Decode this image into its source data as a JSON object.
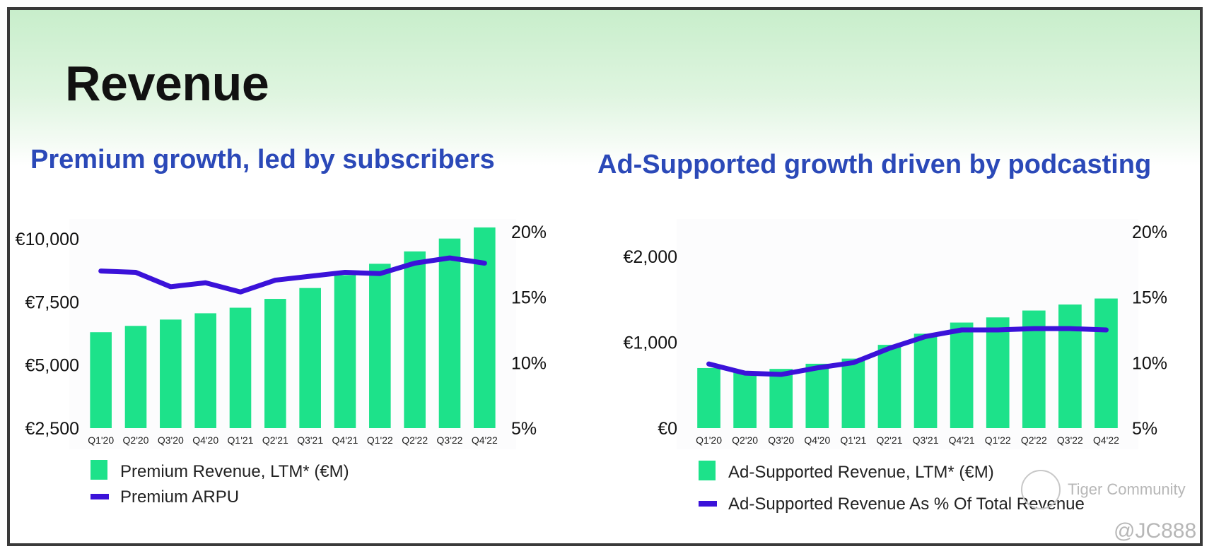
{
  "page": {
    "title": "Revenue"
  },
  "colors": {
    "bar": "#1de28a",
    "line": "#3b12d9",
    "subtitle": "#2b49b8"
  },
  "chart_data": [
    {
      "type": "bar",
      "title": "Premium growth, led by subscribers",
      "categories": [
        "Q1'20",
        "Q2'20",
        "Q3'20",
        "Q4'20",
        "Q1'21",
        "Q2'21",
        "Q3'21",
        "Q4'21",
        "Q1'22",
        "Q2'22",
        "Q3'22",
        "Q4'22"
      ],
      "series": [
        {
          "name": "Premium Revenue, LTM* (€M)",
          "kind": "bar",
          "axis": "left",
          "values": [
            6300,
            6550,
            6800,
            7050,
            7270,
            7620,
            8050,
            8560,
            9010,
            9500,
            10010,
            10450
          ]
        },
        {
          "name": "Premium ARPU",
          "kind": "line",
          "axis": "right",
          "values": [
            17.0,
            16.9,
            15.8,
            16.1,
            15.4,
            16.3,
            16.6,
            16.9,
            16.8,
            17.6,
            18.0,
            17.6
          ]
        }
      ],
      "y_left": {
        "min": 2500,
        "max": 10000,
        "ticks": [
          "€10,000",
          "€7,500",
          "€5,000",
          "€2,500"
        ],
        "tick_values": [
          10000,
          7500,
          5000,
          2500
        ]
      },
      "y_right": {
        "min": 5,
        "max": 20,
        "ticks": [
          "20%",
          "15%",
          "10%",
          "5%"
        ],
        "tick_values": [
          20,
          15,
          10,
          5
        ]
      },
      "legend": [
        "Premium Revenue, LTM* (€M)",
        "Premium ARPU"
      ],
      "legend_position": "bottom"
    },
    {
      "type": "bar",
      "title": "Ad-Supported growth driven by podcasting",
      "categories": [
        "Q1'20",
        "Q2'20",
        "Q3'20",
        "Q4'20",
        "Q1'21",
        "Q2'21",
        "Q3'21",
        "Q4'21",
        "Q1'22",
        "Q2'22",
        "Q3'22",
        "Q4'22"
      ],
      "series": [
        {
          "name": "Ad-Supported Revenue, LTM* (€M)",
          "kind": "bar",
          "axis": "left",
          "values": [
            700,
            660,
            690,
            750,
            810,
            970,
            1100,
            1230,
            1290,
            1370,
            1440,
            1510
          ]
        },
        {
          "name": "Ad-Supported Revenue As % Of Total Revenue",
          "kind": "line",
          "axis": "right",
          "values": [
            9.9,
            9.2,
            9.1,
            9.6,
            10.0,
            11.1,
            12.0,
            12.5,
            12.5,
            12.6,
            12.6,
            12.5
          ]
        }
      ],
      "y_left": {
        "min": 0,
        "max": 2000,
        "ticks": [
          "€2,000",
          "€1,000",
          "€0"
        ],
        "tick_values": [
          2000,
          1000,
          0
        ]
      },
      "y_right": {
        "min": 5,
        "max": 20,
        "ticks": [
          "20%",
          "15%",
          "10%",
          "5%"
        ],
        "tick_values": [
          20,
          15,
          10,
          5
        ]
      },
      "legend": [
        "Ad-Supported Revenue, LTM* (€M)",
        "Ad-Supported Revenue As % Of Total Revenue"
      ],
      "legend_position": "bottom"
    }
  ],
  "watermark": {
    "brand": "Tiger Community",
    "handle": "@JC888"
  }
}
